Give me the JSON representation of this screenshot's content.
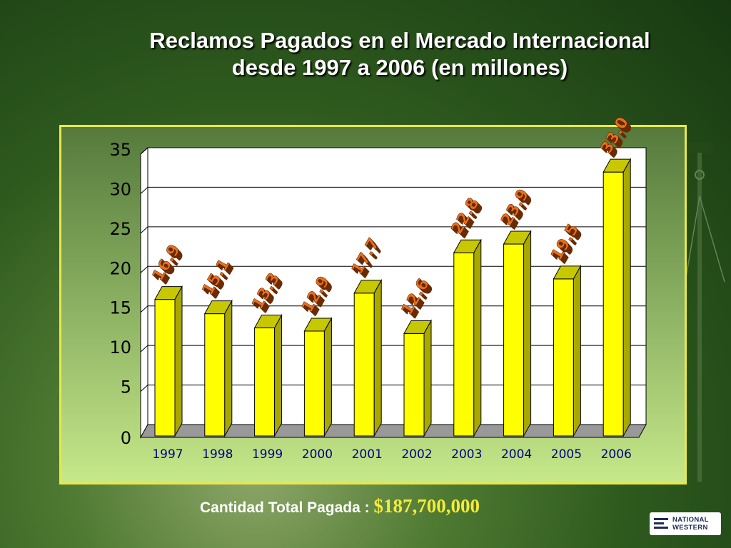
{
  "title_line1": "Reclamos Pagados en el Mercado Internacional",
  "title_line2": "desde 1997 a 2006 (en millones)",
  "total_label": "Cantidad Total Pagada :",
  "total_amount": "$187,700,000",
  "logo_text": [
    "NATIONAL",
    "WESTERN"
  ],
  "colors": {
    "bar_front": "#ffff00",
    "bar_top": "#c8c800",
    "bar_side": "#a8a800",
    "label_fill": "#e8701a",
    "axis_text": "#000000",
    "year_text": "#000080"
  },
  "chart_data": {
    "type": "bar",
    "categories": [
      "1997",
      "1998",
      "1999",
      "2000",
      "2001",
      "2002",
      "2003",
      "2004",
      "2005",
      "2006"
    ],
    "values": [
      16.9,
      15.1,
      13.3,
      12.9,
      17.7,
      12.6,
      22.8,
      23.9,
      19.5,
      33.0
    ],
    "data_labels": [
      "16.9",
      "15.1",
      "13.3",
      "12.9",
      "17.7",
      "12.6",
      "22.8",
      "23.9",
      "19.5",
      "33.0"
    ],
    "y_ticks": [
      "0",
      "5",
      "10",
      "15",
      "20",
      "25",
      "30",
      "35"
    ],
    "ylim": [
      0,
      35
    ],
    "grid": true,
    "style": "3d"
  }
}
